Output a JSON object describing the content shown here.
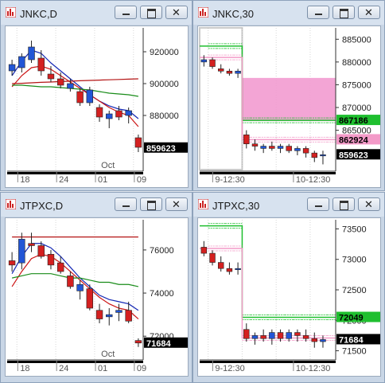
{
  "windows": [
    {
      "id": "jnkc-d",
      "title": "JNKC,D",
      "y_ticks": [
        {
          "v": 920000,
          "t": "920000"
        },
        {
          "v": 900000,
          "t": "900000"
        },
        {
          "v": 880000,
          "t": "880000"
        }
      ],
      "ymin": 845000,
      "ymax": 935000,
      "x_labels": [
        {
          "i": 1,
          "t": "18"
        },
        {
          "i": 5,
          "t": "24"
        },
        {
          "i": 9,
          "t": "01"
        },
        {
          "i": 13,
          "t": "09"
        }
      ],
      "month_label": {
        "i": 9.5,
        "t": "Oct"
      },
      "price_tag": {
        "v": 859623,
        "t": "859623",
        "bg": "#000000",
        "fg": "#ffffff"
      },
      "bars": 14,
      "candles": [
        [
          908000,
          915000,
          905000,
          912000
        ],
        [
          910000,
          919000,
          907000,
          917000
        ],
        [
          915000,
          927000,
          913000,
          923000
        ],
        [
          916000,
          921000,
          905000,
          908000
        ],
        [
          906000,
          911000,
          901000,
          903000
        ],
        [
          903000,
          907000,
          897000,
          899000
        ],
        [
          897000,
          903000,
          895000,
          900000
        ],
        [
          895000,
          897000,
          886000,
          888000
        ],
        [
          888000,
          898000,
          886000,
          896000
        ],
        [
          885000,
          887000,
          876000,
          879000
        ],
        [
          878000,
          883000,
          872000,
          881000
        ],
        [
          883000,
          886000,
          877000,
          879000
        ],
        [
          880000,
          885000,
          875000,
          883000
        ],
        [
          866000,
          868000,
          857000,
          860000
        ]
      ],
      "lines": [
        {
          "color": "#1428b4",
          "values": [
            905000,
            914000,
            921000,
            919000,
            913000,
            908000,
            903000,
            898000,
            893000,
            889000,
            886000,
            884000,
            883000,
            878000
          ]
        },
        {
          "color": "#cc1414",
          "values": [
            898000,
            905000,
            910000,
            911000,
            909000,
            905000,
            901000,
            897000,
            893000,
            889000,
            885000,
            882000,
            880000,
            873000
          ]
        },
        {
          "color": "#198c19",
          "values": [
            899000,
            899000,
            898500,
            898000,
            898000,
            897500,
            897000,
            896500,
            896000,
            895000,
            894000,
            893500,
            893000,
            892000
          ]
        },
        {
          "color": "#b41414",
          "values": [
            900000,
            900200,
            900500,
            900800,
            901000,
            901300,
            901500,
            901800,
            902000,
            902200,
            902400,
            902600,
            902800,
            903000
          ]
        }
      ]
    },
    {
      "id": "jnkc-30",
      "title": "JNKC,30",
      "y_ticks": [
        {
          "v": 885000,
          "t": "885000"
        },
        {
          "v": 880000,
          "t": "880000"
        },
        {
          "v": 875000,
          "t": "875000"
        },
        {
          "v": 870000,
          "t": "870000"
        },
        {
          "v": 865000,
          "t": "865000"
        }
      ],
      "ymin": 856000,
      "ymax": 887500,
      "x_labels": [
        {
          "i": 1.5,
          "t": "9-12:30"
        },
        {
          "i": 11,
          "t": "10-12:30"
        }
      ],
      "price_tag": {
        "v": 859623,
        "t": "859623",
        "bg": "#000000",
        "fg": "#ffffff"
      },
      "extra_tags": [
        {
          "v": 867186,
          "t": "867186",
          "bg": "#1fbf2f",
          "fg": "#000000"
        },
        {
          "v": 862924,
          "t": "862924",
          "bg": "#f39ac8",
          "fg": "#000000"
        }
      ],
      "bars": 16,
      "zone": {
        "from": 5,
        "to": 16,
        "top": 876500,
        "bottom": 867000,
        "color": "#f29bd0"
      },
      "candles": [
        [
          880000,
          881500,
          879000,
          880500
        ],
        [
          880500,
          881000,
          878500,
          879000
        ],
        [
          878500,
          879500,
          877500,
          878000
        ],
        [
          878000,
          878500,
          877000,
          877500
        ],
        [
          877500,
          878500,
          876500,
          878000
        ],
        [
          864000,
          865000,
          861000,
          862000
        ],
        [
          862000,
          863000,
          860500,
          861500
        ],
        [
          861000,
          862000,
          860000,
          861500
        ],
        [
          861500,
          862500,
          860500,
          861000
        ],
        [
          861000,
          862000,
          860000,
          861500
        ],
        [
          861500,
          862000,
          860000,
          860500
        ],
        [
          860500,
          861500,
          859500,
          861000
        ],
        [
          861000,
          861500,
          859000,
          860000
        ],
        [
          860000,
          860500,
          858000,
          859000
        ],
        [
          859500,
          860500,
          857500,
          859623
        ]
      ],
      "sr": [
        {
          "color": "#1fbf2f",
          "values": [
            883500,
            883500,
            883500,
            883500,
            883500,
            867186,
            867186,
            867186,
            867186,
            867186,
            867186,
            867186,
            867186,
            867186,
            867186,
            867186
          ]
        },
        {
          "color": "#f39ac8",
          "values": [
            881000,
            881000,
            881000,
            881000,
            881000,
            862924,
            862924,
            862924,
            862924,
            862924,
            862924,
            862924,
            862924,
            862924,
            862924,
            862924
          ]
        }
      ]
    },
    {
      "id": "jtpxc-d",
      "title": "JTPXC,D",
      "y_ticks": [
        {
          "v": 76000,
          "t": "76000"
        },
        {
          "v": 74000,
          "t": "74000"
        },
        {
          "v": 72000,
          "t": "72000"
        }
      ],
      "ymin": 70900,
      "ymax": 77400,
      "x_labels": [
        {
          "i": 1,
          "t": "18"
        },
        {
          "i": 5,
          "t": "24"
        },
        {
          "i": 9,
          "t": "01"
        },
        {
          "i": 13,
          "t": "09"
        }
      ],
      "month_label": {
        "i": 9.5,
        "t": "Oct"
      },
      "price_tag": {
        "v": 71684,
        "t": "71684",
        "bg": "#000000",
        "fg": "#ffffff"
      },
      "bars": 14,
      "candles": [
        [
          75500,
          75900,
          75000,
          75300
        ],
        [
          75400,
          76800,
          75100,
          76500
        ],
        [
          76300,
          76800,
          75900,
          76200
        ],
        [
          76200,
          76400,
          75600,
          75700
        ],
        [
          75800,
          76000,
          75100,
          75300
        ],
        [
          75400,
          75700,
          74900,
          75000
        ],
        [
          74800,
          75000,
          74200,
          74300
        ],
        [
          74100,
          74600,
          73700,
          74400
        ],
        [
          74200,
          74400,
          73200,
          73300
        ],
        [
          73200,
          73500,
          72600,
          72800
        ],
        [
          72900,
          73300,
          72500,
          73000
        ],
        [
          73100,
          73500,
          72700,
          73200
        ],
        [
          73200,
          73600,
          72600,
          72700
        ],
        [
          71800,
          71900,
          71500,
          71684
        ]
      ],
      "lines": [
        {
          "color": "#1428b4",
          "values": [
            74900,
            75700,
            76300,
            76300,
            76100,
            75700,
            75200,
            74700,
            74300,
            73900,
            73700,
            73600,
            73500,
            73200
          ]
        },
        {
          "color": "#cc1414",
          "values": [
            74300,
            75000,
            75600,
            75800,
            75700,
            75400,
            75000,
            74600,
            74200,
            73800,
            73500,
            73300,
            73200,
            72800
          ]
        },
        {
          "color": "#198c19",
          "values": [
            74700,
            74800,
            74900,
            74900,
            74900,
            74800,
            74700,
            74700,
            74600,
            74500,
            74500,
            74400,
            74400,
            74300
          ]
        },
        {
          "color": "#b41414",
          "values": [
            76600,
            76600,
            76600,
            76600,
            76600,
            76600,
            76600,
            76600,
            76600,
            76600,
            76600,
            76600,
            76600,
            76600
          ]
        }
      ]
    },
    {
      "id": "jtpxc-30",
      "title": "JTPXC,30",
      "y_ticks": [
        {
          "v": 73500,
          "t": "73500"
        },
        {
          "v": 73000,
          "t": "73000"
        },
        {
          "v": 72500,
          "t": "72500"
        },
        {
          "v": 72000,
          "t": "72000"
        },
        {
          "v": 71500,
          "t": "71500"
        }
      ],
      "ymin": 71350,
      "ymax": 73650,
      "x_labels": [
        {
          "i": 1.5,
          "t": "9-12:30"
        },
        {
          "i": 11,
          "t": "10-12:30"
        }
      ],
      "price_tag": {
        "v": 71684,
        "t": "71684",
        "bg": "#000000",
        "fg": "#ffffff"
      },
      "extra_tags": [
        {
          "v": 72049,
          "t": "72049",
          "bg": "#1fbf2f",
          "fg": "#000000"
        }
      ],
      "bars": 16,
      "candles": [
        [
          73200,
          73300,
          73050,
          73100
        ],
        [
          73100,
          73150,
          72900,
          72950
        ],
        [
          72950,
          73050,
          72800,
          72850
        ],
        [
          72850,
          72950,
          72750,
          72800
        ],
        [
          72850,
          72950,
          72750,
          72850
        ],
        [
          71850,
          71950,
          71650,
          71700
        ],
        [
          71700,
          71800,
          71600,
          71750
        ],
        [
          71750,
          71850,
          71650,
          71700
        ],
        [
          71700,
          71850,
          71600,
          71800
        ],
        [
          71800,
          71850,
          71650,
          71700
        ],
        [
          71700,
          71850,
          71650,
          71800
        ],
        [
          71800,
          71850,
          71650,
          71750
        ],
        [
          71750,
          71850,
          71650,
          71700
        ],
        [
          71700,
          71800,
          71550,
          71650
        ],
        [
          71650,
          71750,
          71550,
          71684
        ]
      ],
      "sr": [
        {
          "color": "#1fbf2f",
          "values": [
            73550,
            73550,
            73550,
            73550,
            73550,
            72049,
            72049,
            72049,
            72049,
            72049,
            72049,
            72049,
            72049,
            72049,
            72049,
            72049
          ]
        },
        {
          "color": "#f39ac8",
          "values": [
            73180,
            73180,
            73180,
            73180,
            73180,
            71710,
            71710,
            71710,
            71710,
            71710,
            71710,
            71710,
            71710,
            71710,
            71710,
            71710
          ]
        }
      ]
    }
  ]
}
